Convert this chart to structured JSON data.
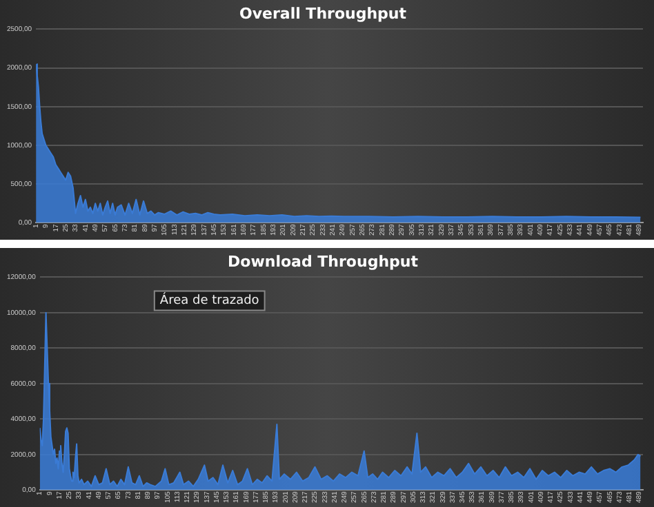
{
  "chart_data": [
    {
      "type": "area",
      "title": "Overall Throughput",
      "grid": "y",
      "xlim": [
        1,
        492
      ],
      "ylim": [
        0,
        2500
      ],
      "yticks": [
        {
          "value": 0,
          "label": "0,00"
        },
        {
          "value": 500,
          "label": "500,00"
        },
        {
          "value": 1000,
          "label": "1000,00"
        },
        {
          "value": 1500,
          "label": "1500,00"
        },
        {
          "value": 2000,
          "label": "2000,00"
        },
        {
          "value": 2500,
          "label": "2500,00"
        }
      ],
      "xticks": [
        1,
        9,
        17,
        25,
        33,
        41,
        49,
        57,
        65,
        73,
        81,
        89,
        97,
        105,
        113,
        121,
        129,
        137,
        145,
        153,
        161,
        169,
        177,
        185,
        193,
        201,
        209,
        217,
        225,
        233,
        241,
        249,
        257,
        265,
        273,
        281,
        289,
        297,
        305,
        313,
        321,
        329,
        337,
        345,
        353,
        361,
        369,
        377,
        385,
        393,
        401,
        409,
        417,
        425,
        433,
        441,
        449,
        457,
        465,
        473,
        481,
        489
      ],
      "series": [
        {
          "color": "#3a7bd5",
          "x": [
            1,
            2,
            3,
            4,
            5,
            6,
            7,
            9,
            11,
            13,
            15,
            17,
            19,
            21,
            23,
            25,
            27,
            29,
            31,
            33,
            35,
            37,
            39,
            41,
            43,
            45,
            47,
            49,
            51,
            53,
            55,
            57,
            59,
            61,
            63,
            65,
            67,
            70,
            73,
            76,
            79,
            82,
            85,
            88,
            91,
            94,
            97,
            100,
            105,
            110,
            115,
            120,
            125,
            130,
            135,
            140,
            145,
            150,
            160,
            170,
            180,
            190,
            200,
            210,
            220,
            230,
            240,
            250,
            270,
            290,
            310,
            330,
            350,
            370,
            390,
            410,
            430,
            450,
            470,
            490
          ],
          "values": [
            2050,
            1900,
            1750,
            1500,
            1300,
            1150,
            1100,
            1000,
            950,
            900,
            850,
            750,
            700,
            650,
            600,
            550,
            650,
            600,
            450,
            120,
            250,
            350,
            200,
            300,
            150,
            200,
            120,
            250,
            150,
            250,
            100,
            200,
            280,
            120,
            250,
            100,
            200,
            230,
            100,
            250,
            120,
            300,
            100,
            280,
            120,
            150,
            100,
            130,
            110,
            150,
            100,
            140,
            110,
            120,
            100,
            130,
            110,
            100,
            110,
            90,
            100,
            90,
            100,
            80,
            90,
            80,
            85,
            80,
            80,
            75,
            80,
            75,
            75,
            80,
            75,
            75,
            80,
            75,
            75,
            70
          ]
        }
      ]
    },
    {
      "type": "area",
      "title": "Download Throughput",
      "grid": "y",
      "xlim": [
        1,
        492
      ],
      "ylim": [
        0,
        12000
      ],
      "annotations": [
        "Área de trazado"
      ],
      "yticks": [
        {
          "value": 0,
          "label": "0,00"
        },
        {
          "value": 2000,
          "label": "2000,00"
        },
        {
          "value": 4000,
          "label": "4000,00"
        },
        {
          "value": 6000,
          "label": "6000,00"
        },
        {
          "value": 8000,
          "label": "8000,00"
        },
        {
          "value": 10000,
          "label": "10000,00"
        },
        {
          "value": 12000,
          "label": "12000,00"
        }
      ],
      "xticks": [
        1,
        9,
        17,
        25,
        33,
        41,
        49,
        57,
        65,
        73,
        81,
        89,
        97,
        105,
        113,
        121,
        129,
        137,
        145,
        153,
        161,
        169,
        177,
        185,
        193,
        201,
        209,
        217,
        225,
        233,
        241,
        249,
        257,
        265,
        273,
        281,
        289,
        297,
        305,
        313,
        321,
        329,
        337,
        345,
        353,
        361,
        369,
        377,
        385,
        393,
        401,
        409,
        417,
        425,
        433,
        441,
        449,
        457,
        465,
        473,
        481,
        489
      ],
      "series": [
        {
          "color": "#3a7bd5",
          "x": [
            1,
            2,
            3,
            4,
            5,
            6,
            7,
            8,
            9,
            10,
            11,
            12,
            13,
            14,
            15,
            16,
            17,
            18,
            19,
            20,
            21,
            22,
            23,
            24,
            25,
            26,
            27,
            28,
            29,
            30,
            31,
            32,
            33,
            35,
            37,
            40,
            43,
            46,
            49,
            52,
            55,
            58,
            61,
            64,
            67,
            70,
            73,
            76,
            79,
            82,
            85,
            88,
            91,
            95,
            100,
            103,
            106,
            110,
            115,
            118,
            122,
            126,
            130,
            135,
            138,
            142,
            146,
            150,
            154,
            158,
            162,
            166,
            170,
            174,
            178,
            182,
            186,
            190,
            194,
            196,
            200,
            205,
            210,
            215,
            220,
            225,
            230,
            235,
            240,
            245,
            250,
            255,
            260,
            265,
            268,
            272,
            276,
            280,
            285,
            290,
            295,
            300,
            304,
            308,
            311,
            315,
            320,
            325,
            330,
            335,
            340,
            345,
            350,
            355,
            360,
            365,
            370,
            375,
            380,
            385,
            390,
            395,
            400,
            405,
            410,
            415,
            420,
            425,
            430,
            435,
            440,
            445,
            450,
            455,
            460,
            465,
            470,
            475,
            480,
            485,
            488,
            490
          ],
          "values": [
            3500,
            2800,
            2500,
            4000,
            7000,
            10000,
            8000,
            6000,
            4500,
            3000,
            2500,
            2000,
            2300,
            1500,
            1800,
            1200,
            2200,
            2500,
            1500,
            1000,
            2000,
            3300,
            3500,
            3200,
            1200,
            800,
            500,
            1000,
            700,
            1800,
            2600,
            800,
            400,
            600,
            300,
            500,
            200,
            800,
            300,
            400,
            1200,
            300,
            500,
            200,
            600,
            300,
            1300,
            400,
            300,
            800,
            200,
            400,
            300,
            200,
            500,
            1200,
            300,
            400,
            1000,
            300,
            500,
            200,
            600,
            1400,
            500,
            700,
            300,
            1400,
            400,
            1100,
            300,
            500,
            1200,
            300,
            600,
            400,
            800,
            500,
            3700,
            600,
            900,
            600,
            1000,
            500,
            700,
            1300,
            600,
            800,
            500,
            900,
            700,
            1000,
            800,
            2200,
            700,
            900,
            600,
            1000,
            700,
            1100,
            800,
            1300,
            900,
            3200,
            1000,
            1300,
            700,
            1000,
            800,
            1200,
            700,
            1000,
            1500,
            900,
            1300,
            800,
            1100,
            700,
            1300,
            800,
            1000,
            700,
            1200,
            600,
            1100,
            800,
            1000,
            700,
            1100,
            800,
            1000,
            900,
            1300,
            900,
            1100,
            1200,
            1000,
            1300,
            1400,
            1700,
            2000,
            1900
          ]
        }
      ]
    }
  ]
}
